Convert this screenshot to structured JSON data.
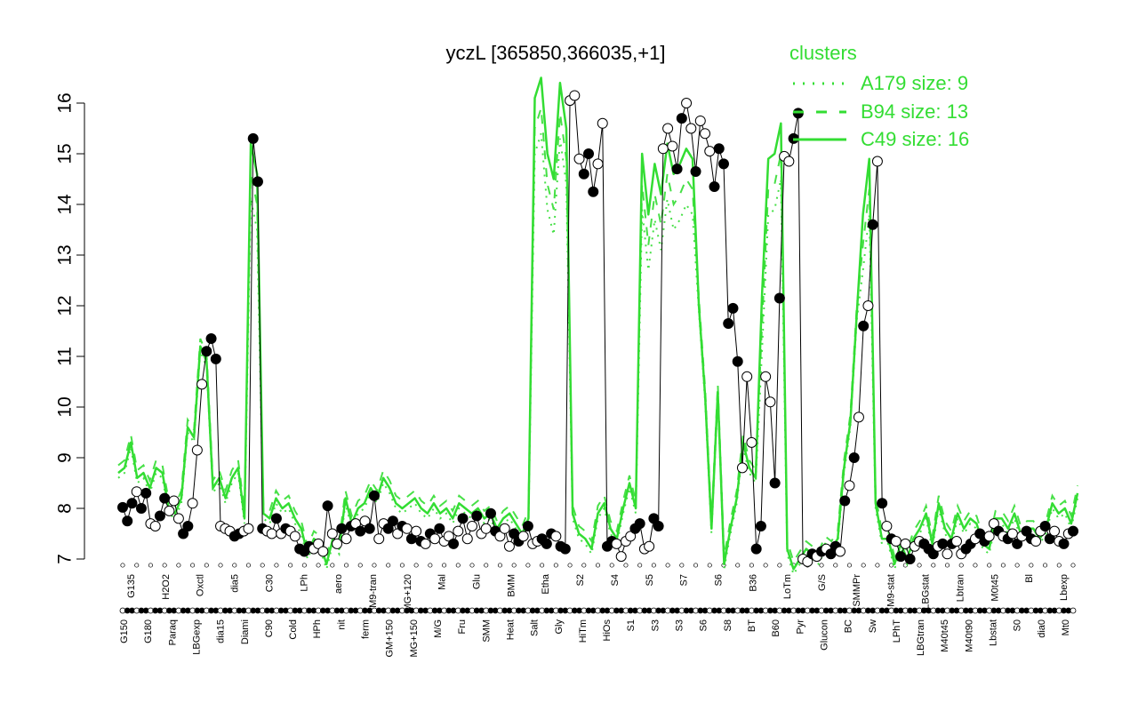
{
  "colors": {
    "series": "#33dd33",
    "axis": "#000000",
    "point_dark": "#000000",
    "point_light": "#ffffff"
  },
  "chart_data": {
    "type": "line",
    "title": "yczL [365850,366035,+1]",
    "xlabel": "",
    "ylabel": "",
    "ylim": [
      7,
      16
    ],
    "yticks": [
      7,
      8,
      9,
      10,
      11,
      12,
      13,
      14,
      15,
      16
    ],
    "grid": false,
    "legend": {
      "title": "clusters",
      "placement": "top-right",
      "entries": [
        {
          "label": "A179 size: 9",
          "style": "dotted"
        },
        {
          "label": "B94 size: 13",
          "style": "dashed"
        },
        {
          "label": "C49 size: 16",
          "style": "solid"
        }
      ]
    },
    "x_labels_lower": [
      "G150",
      "G180",
      "Paraq",
      "LBGexp",
      "dia15",
      "Diami",
      "C90",
      "Cold",
      "HPh",
      "nit",
      "ferm",
      "GM+150",
      "MG+150",
      "M/G",
      "Fru",
      "SMM",
      "Heat",
      "Salt",
      "Gly",
      "HiTm",
      "HiOs",
      "S1",
      "S3",
      "S3",
      "S6",
      "S8",
      "BT",
      "B60",
      "Pyr",
      "Glucon",
      "BC",
      "Sw",
      "LPhT",
      "LBGtran",
      "M40t45",
      "M40t90",
      "Lbstat",
      "S0",
      "dia0",
      "Mt0"
    ],
    "x_labels_upper": [
      "G135",
      "H2O2",
      "Oxctl",
      "dia5",
      "C30",
      "LPh",
      "aero",
      "M9-tran",
      "MG+120",
      "Mal",
      "Glu",
      "BMM",
      "Etha",
      "S2",
      "S4",
      "S5",
      "S7",
      "S6",
      "B36",
      "LoTm",
      "G/S",
      "SMMPr",
      "M9-stat",
      "LBGstat",
      "Lbtran",
      "M0t45",
      "Bl",
      "Lbexp"
    ],
    "series": [
      {
        "values_line": [
          8.7,
          8.8,
          9.3,
          8.6,
          8.7,
          8.4,
          8.8,
          8.7,
          8.0,
          7.9,
          8.2,
          9.6,
          9.4,
          11.2,
          10.9,
          8.4,
          8.6,
          8.2,
          8.6,
          8.8,
          7.8,
          15.2,
          14.6,
          7.9,
          7.8,
          8.2,
          8.0,
          8.1,
          7.8,
          7.6,
          7.1,
          7.4,
          7.3,
          6.9,
          7.4,
          7.2,
          8.2,
          7.7,
          8.0,
          8.1,
          8.4,
          8.2,
          8.6,
          8.4,
          8.1,
          8.0,
          8.1,
          8.2,
          8.0,
          7.9,
          8.1,
          7.9,
          8.0,
          7.8,
          8.1,
          8.0,
          7.9,
          8.0,
          7.8,
          7.9,
          7.6,
          7.8,
          7.9,
          7.7,
          7.5,
          7.8,
          16.1,
          16.5,
          15.0,
          14.5,
          16.4,
          15.5,
          7.9,
          7.5,
          7.4,
          7.2,
          7.9,
          8.1,
          7.6,
          7.4,
          8.0,
          8.5,
          8.0,
          15.0,
          13.8,
          14.8,
          14.2,
          15.2,
          14.6,
          14.8,
          15.1,
          14.9,
          12.0,
          10.2,
          7.6,
          10.3,
          6.9,
          7.6,
          8.2,
          9.3,
          8.8,
          8.6,
          12.2,
          14.9,
          15.0,
          15.6,
          7.2,
          6.8,
          7.0,
          7.2,
          7.1,
          7.0,
          7.3,
          7.2,
          7.4,
          8.8,
          9.7,
          11.8,
          13.8,
          14.9,
          8.1,
          7.4,
          7.4,
          6.9,
          7.3,
          7.0,
          7.4,
          7.6,
          7.9,
          7.3,
          8.1,
          7.6,
          7.4,
          7.9,
          7.6,
          7.8,
          7.7,
          7.3,
          7.2,
          7.8,
          7.8,
          7.6,
          7.9,
          7.5,
          7.6,
          7.6,
          7.4,
          7.6,
          8.1,
          7.9,
          8.0,
          7.7,
          8.3
        ],
        "points": [
          {
            "y": 8.02,
            "filled": true
          },
          {
            "y": 7.75,
            "filled": true
          },
          {
            "y": 8.1,
            "filled": true
          },
          {
            "y": 8.33,
            "filled": false
          },
          {
            "y": 8.0,
            "filled": true
          },
          {
            "y": 8.3,
            "filled": true
          },
          {
            "y": 7.7,
            "filled": false
          },
          {
            "y": 7.65,
            "filled": false
          },
          {
            "y": 7.85,
            "filled": true
          },
          {
            "y": 8.2,
            "filled": true
          },
          {
            "y": 7.95,
            "filled": false
          },
          {
            "y": 8.15,
            "filled": false
          },
          {
            "y": 7.8,
            "filled": false
          },
          {
            "y": 7.5,
            "filled": true
          },
          {
            "y": 7.65,
            "filled": true
          },
          {
            "y": 8.1,
            "filled": false
          },
          {
            "y": 9.15,
            "filled": false
          },
          {
            "y": 10.45,
            "filled": false
          },
          {
            "y": 11.1,
            "filled": true
          },
          {
            "y": 11.35,
            "filled": true
          },
          {
            "y": 10.95,
            "filled": true
          },
          {
            "y": 7.65,
            "filled": false
          },
          {
            "y": 7.6,
            "filled": false
          },
          {
            "y": 7.55,
            "filled": false
          },
          {
            "y": 7.45,
            "filled": true
          },
          {
            "y": 7.5,
            "filled": true
          },
          {
            "y": 7.55,
            "filled": false
          },
          {
            "y": 7.6,
            "filled": false
          },
          {
            "y": 15.3,
            "filled": true
          },
          {
            "y": 14.45,
            "filled": true
          },
          {
            "y": 7.6,
            "filled": true
          },
          {
            "y": 7.55,
            "filled": false
          },
          {
            "y": 7.5,
            "filled": false
          },
          {
            "y": 7.8,
            "filled": true
          },
          {
            "y": 7.5,
            "filled": false
          },
          {
            "y": 7.6,
            "filled": true
          },
          {
            "y": 7.55,
            "filled": false
          },
          {
            "y": 7.45,
            "filled": false
          },
          {
            "y": 7.2,
            "filled": true
          },
          {
            "y": 7.15,
            "filled": true
          },
          {
            "y": 7.25,
            "filled": true
          },
          {
            "y": 7.2,
            "filled": false
          },
          {
            "y": 7.3,
            "filled": false
          },
          {
            "y": 7.15,
            "filled": false
          },
          {
            "y": 8.05,
            "filled": true
          },
          {
            "y": 7.5,
            "filled": false
          },
          {
            "y": 7.3,
            "filled": false
          },
          {
            "y": 7.6,
            "filled": true
          },
          {
            "y": 7.4,
            "filled": false
          },
          {
            "y": 7.65,
            "filled": true
          },
          {
            "y": 7.7,
            "filled": false
          },
          {
            "y": 7.55,
            "filled": true
          },
          {
            "y": 7.75,
            "filled": false
          },
          {
            "y": 7.6,
            "filled": true
          },
          {
            "y": 8.25,
            "filled": true
          },
          {
            "y": 7.4,
            "filled": false
          },
          {
            "y": 7.7,
            "filled": false
          },
          {
            "y": 7.6,
            "filled": true
          },
          {
            "y": 7.75,
            "filled": true
          },
          {
            "y": 7.5,
            "filled": false
          },
          {
            "y": 7.65,
            "filled": true
          },
          {
            "y": 7.6,
            "filled": false
          },
          {
            "y": 7.4,
            "filled": true
          },
          {
            "y": 7.55,
            "filled": false
          },
          {
            "y": 7.35,
            "filled": true
          },
          {
            "y": 7.3,
            "filled": false
          },
          {
            "y": 7.5,
            "filled": true
          },
          {
            "y": 7.4,
            "filled": false
          },
          {
            "y": 7.6,
            "filled": true
          },
          {
            "y": 7.35,
            "filled": false
          },
          {
            "y": 7.45,
            "filled": false
          },
          {
            "y": 7.3,
            "filled": true
          },
          {
            "y": 7.55,
            "filled": false
          },
          {
            "y": 7.8,
            "filled": true
          },
          {
            "y": 7.4,
            "filled": false
          },
          {
            "y": 7.65,
            "filled": false
          },
          {
            "y": 7.85,
            "filled": true
          },
          {
            "y": 7.5,
            "filled": false
          },
          {
            "y": 7.6,
            "filled": false
          },
          {
            "y": 7.9,
            "filled": true
          },
          {
            "y": 7.55,
            "filled": true
          },
          {
            "y": 7.45,
            "filled": false
          },
          {
            "y": 7.6,
            "filled": false
          },
          {
            "y": 7.25,
            "filled": false
          },
          {
            "y": 7.5,
            "filled": true
          },
          {
            "y": 7.35,
            "filled": true
          },
          {
            "y": 7.45,
            "filled": false
          },
          {
            "y": 7.65,
            "filled": true
          },
          {
            "y": 7.3,
            "filled": false
          },
          {
            "y": 7.35,
            "filled": false
          },
          {
            "y": 7.4,
            "filled": true
          },
          {
            "y": 7.3,
            "filled": true
          },
          {
            "y": 7.5,
            "filled": true
          },
          {
            "y": 7.45,
            "filled": false
          },
          {
            "y": 7.25,
            "filled": true
          },
          {
            "y": 7.2,
            "filled": true
          },
          {
            "y": 16.05,
            "filled": false
          },
          {
            "y": 16.15,
            "filled": false
          },
          {
            "y": 14.9,
            "filled": false
          },
          {
            "y": 14.6,
            "filled": true
          },
          {
            "y": 15.0,
            "filled": true
          },
          {
            "y": 14.25,
            "filled": true
          },
          {
            "y": 14.8,
            "filled": false
          },
          {
            "y": 15.6,
            "filled": false
          },
          {
            "y": 7.25,
            "filled": true
          },
          {
            "y": 7.35,
            "filled": true
          },
          {
            "y": 7.3,
            "filled": false
          },
          {
            "y": 7.05,
            "filled": false
          },
          {
            "y": 7.35,
            "filled": false
          },
          {
            "y": 7.45,
            "filled": false
          },
          {
            "y": 7.6,
            "filled": true
          },
          {
            "y": 7.7,
            "filled": true
          },
          {
            "y": 7.2,
            "filled": false
          },
          {
            "y": 7.25,
            "filled": false
          },
          {
            "y": 7.8,
            "filled": true
          },
          {
            "y": 7.65,
            "filled": true
          },
          {
            "y": 15.1,
            "filled": false
          },
          {
            "y": 15.5,
            "filled": false
          },
          {
            "y": 15.15,
            "filled": false
          },
          {
            "y": 14.7,
            "filled": true
          },
          {
            "y": 15.7,
            "filled": true
          },
          {
            "y": 16.0,
            "filled": false
          },
          {
            "y": 15.5,
            "filled": false
          },
          {
            "y": 14.65,
            "filled": true
          },
          {
            "y": 15.65,
            "filled": false
          },
          {
            "y": 15.4,
            "filled": false
          },
          {
            "y": 15.05,
            "filled": false
          },
          {
            "y": 14.35,
            "filled": true
          },
          {
            "y": 15.1,
            "filled": true
          },
          {
            "y": 14.8,
            "filled": true
          },
          {
            "y": 11.65,
            "filled": true
          },
          {
            "y": 11.95,
            "filled": true
          },
          {
            "y": 10.9,
            "filled": true
          },
          {
            "y": 8.8,
            "filled": false
          },
          {
            "y": 10.6,
            "filled": false
          },
          {
            "y": 9.3,
            "filled": false
          },
          {
            "y": 7.2,
            "filled": true
          },
          {
            "y": 7.65,
            "filled": true
          },
          {
            "y": 10.6,
            "filled": false
          },
          {
            "y": 10.1,
            "filled": false
          },
          {
            "y": 8.5,
            "filled": true
          },
          {
            "y": 12.15,
            "filled": true
          },
          {
            "y": 14.95,
            "filled": false
          },
          {
            "y": 14.85,
            "filled": false
          },
          {
            "y": 15.3,
            "filled": true
          },
          {
            "y": 15.8,
            "filled": true
          },
          {
            "y": 7.0,
            "filled": false
          },
          {
            "y": 6.95,
            "filled": false
          },
          {
            "y": 7.1,
            "filled": true
          },
          {
            "y": 7.05,
            "filled": false
          },
          {
            "y": 7.15,
            "filled": true
          },
          {
            "y": 7.2,
            "filled": false
          },
          {
            "y": 7.1,
            "filled": true
          },
          {
            "y": 7.25,
            "filled": true
          },
          {
            "y": 7.15,
            "filled": false
          },
          {
            "y": 8.15,
            "filled": true
          },
          {
            "y": 8.45,
            "filled": false
          },
          {
            "y": 9.0,
            "filled": true
          },
          {
            "y": 9.8,
            "filled": false
          },
          {
            "y": 11.6,
            "filled": true
          },
          {
            "y": 12.0,
            "filled": false
          },
          {
            "y": 13.6,
            "filled": true
          },
          {
            "y": 14.85,
            "filled": false
          },
          {
            "y": 8.1,
            "filled": true
          },
          {
            "y": 7.65,
            "filled": false
          },
          {
            "y": 7.4,
            "filled": true
          },
          {
            "y": 7.35,
            "filled": false
          },
          {
            "y": 7.05,
            "filled": true
          },
          {
            "y": 7.3,
            "filled": false
          },
          {
            "y": 7.0,
            "filled": true
          },
          {
            "y": 7.25,
            "filled": false
          },
          {
            "y": 7.35,
            "filled": false
          },
          {
            "y": 7.3,
            "filled": true
          },
          {
            "y": 7.2,
            "filled": true
          },
          {
            "y": 7.1,
            "filled": true
          },
          {
            "y": 7.25,
            "filled": false
          },
          {
            "y": 7.3,
            "filled": true
          },
          {
            "y": 7.1,
            "filled": false
          },
          {
            "y": 7.3,
            "filled": true
          },
          {
            "y": 7.35,
            "filled": false
          },
          {
            "y": 7.1,
            "filled": false
          },
          {
            "y": 7.2,
            "filled": true
          },
          {
            "y": 7.3,
            "filled": true
          },
          {
            "y": 7.4,
            "filled": false
          },
          {
            "y": 7.5,
            "filled": true
          },
          {
            "y": 7.35,
            "filled": true
          },
          {
            "y": 7.45,
            "filled": false
          },
          {
            "y": 7.7,
            "filled": false
          },
          {
            "y": 7.55,
            "filled": true
          },
          {
            "y": 7.45,
            "filled": false
          },
          {
            "y": 7.4,
            "filled": true
          },
          {
            "y": 7.5,
            "filled": false
          },
          {
            "y": 7.3,
            "filled": true
          },
          {
            "y": 7.45,
            "filled": false
          },
          {
            "y": 7.55,
            "filled": true
          },
          {
            "y": 7.4,
            "filled": true
          },
          {
            "y": 7.35,
            "filled": false
          },
          {
            "y": 7.55,
            "filled": false
          },
          {
            "y": 7.65,
            "filled": true
          },
          {
            "y": 7.4,
            "filled": true
          },
          {
            "y": 7.55,
            "filled": false
          },
          {
            "y": 7.35,
            "filled": false
          },
          {
            "y": 7.3,
            "filled": true
          },
          {
            "y": 7.5,
            "filled": false
          },
          {
            "y": 7.55,
            "filled": true
          }
        ]
      }
    ]
  }
}
